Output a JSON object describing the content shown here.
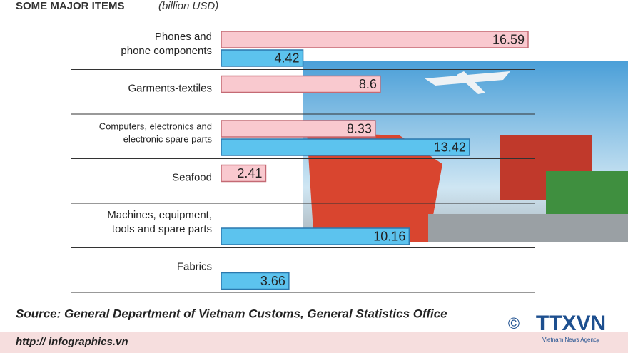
{
  "chart_data": {
    "type": "bar",
    "title": "SOME MAJOR ITEMS",
    "subtitle": "(billion USD)",
    "categories": [
      [
        "Phones and",
        "phone components"
      ],
      [
        "Garments-textiles"
      ],
      [
        "Computers, electronics and",
        "electronic spare parts"
      ],
      [
        "Seafood"
      ],
      [
        "Machines, equipment,",
        "tools and spare parts"
      ],
      [
        "Fabrics"
      ]
    ],
    "series": [
      {
        "color": "#f9c9cf",
        "values": [
          16.59,
          8.6,
          8.33,
          2.41,
          null,
          null
        ]
      },
      {
        "color": "#5cc3ee",
        "values": [
          4.42,
          null,
          13.42,
          null,
          10.16,
          3.66
        ]
      }
    ],
    "source": "Source:  General Department of Vietnam Customs, General Statistics Office",
    "url": "http:// infographics.vn",
    "copyright": "©",
    "logo": "TTXVN",
    "logo_caption": "Vietnam News Agency"
  }
}
